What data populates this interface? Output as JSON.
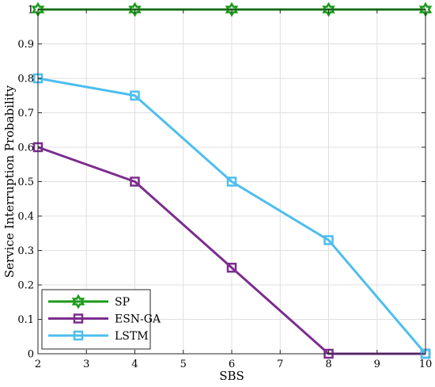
{
  "chart_data": {
    "type": "line",
    "title": "",
    "xlabel": "SBS",
    "ylabel": "Service Interruption Probability",
    "xlim": [
      2,
      10
    ],
    "ylim": [
      0,
      1
    ],
    "xticks": [
      2,
      3,
      4,
      5,
      6,
      7,
      8,
      9,
      10
    ],
    "yticks": [
      0,
      0.1,
      0.2,
      0.3,
      0.4,
      0.5,
      0.6,
      0.7,
      0.8,
      0.9,
      1
    ],
    "grid": true,
    "legend_position": "bottom-left",
    "x": [
      2,
      4,
      6,
      8,
      10
    ],
    "series": [
      {
        "name": "SP",
        "values": [
          1,
          1,
          1,
          1,
          1
        ],
        "color": "#1a9a1a",
        "marker": "hexagram"
      },
      {
        "name": "ESN-GA",
        "values": [
          0.6,
          0.5,
          0.25,
          0,
          0
        ],
        "color": "#7b2d8e",
        "marker": "square"
      },
      {
        "name": "LSTM",
        "values": [
          0.8,
          0.75,
          0.5,
          0.33,
          0
        ],
        "color": "#4dbeee",
        "marker": "square"
      }
    ]
  }
}
